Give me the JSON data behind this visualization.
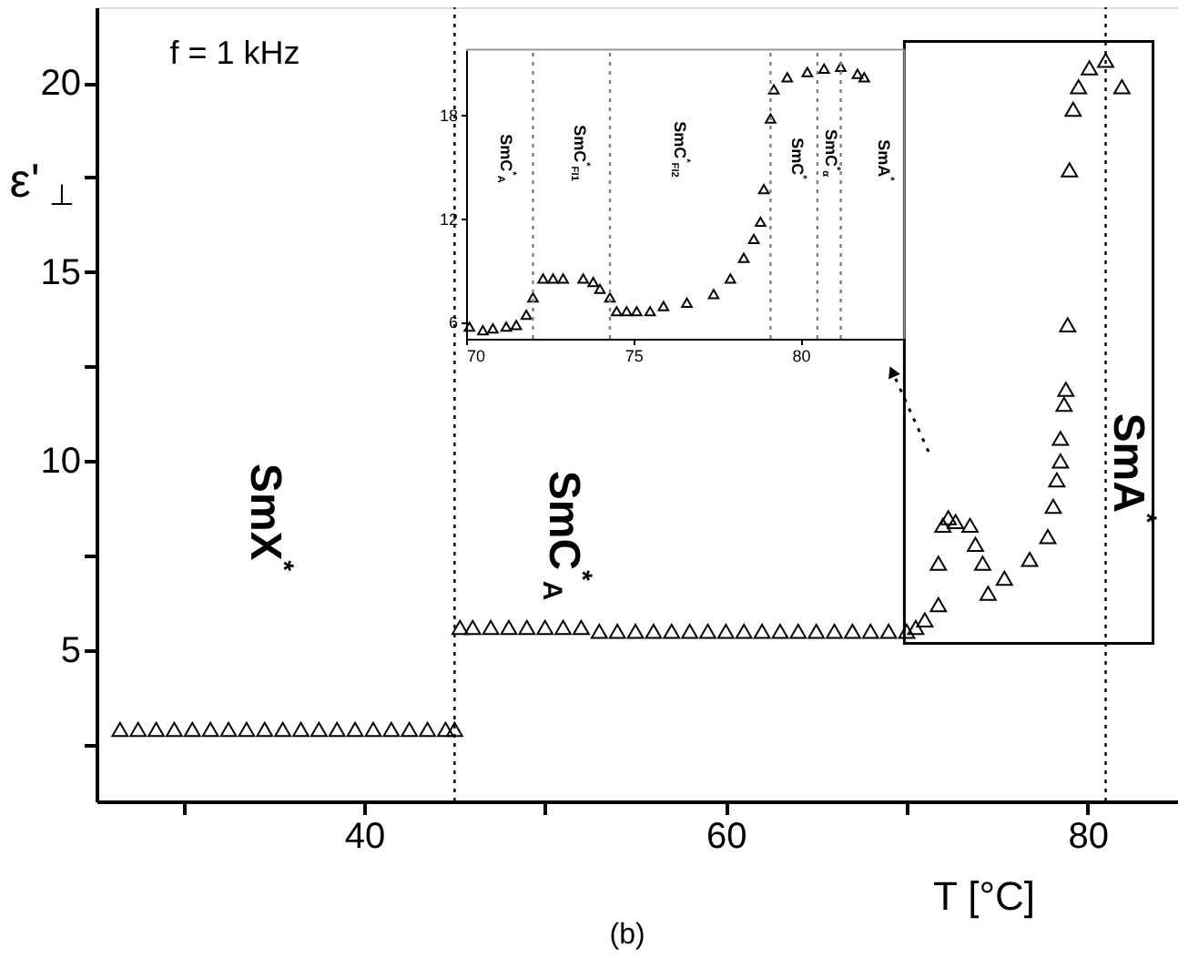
{
  "chart_data": [
    {
      "type": "scatter",
      "xlabel": "T [°C]",
      "ylabel": "ε'$_{⊥}$",
      "marker": "triangle",
      "grid": false,
      "xlim": [
        25.2,
        85
      ],
      "ylim": [
        1,
        22
      ],
      "xticks": [
        {
          "value": 30,
          "label": null
        },
        40,
        {
          "value": 50,
          "label": null
        },
        60,
        {
          "value": 70,
          "label": null
        },
        80
      ],
      "yticks": [
        {
          "value": 2.5,
          "label": null
        },
        5,
        {
          "value": 7.5,
          "label": null
        },
        10,
        {
          "value": 12.5,
          "label": null
        },
        15,
        {
          "value": 17.5,
          "label": null
        },
        20
      ],
      "series": [
        {
          "color": "#000000",
          "x": [
            26.5,
            27.5,
            28.5,
            29.5,
            30.5,
            31.5,
            32.5,
            33.5,
            34.5,
            35.5,
            36.5,
            37.5,
            38.5,
            39.5,
            40.5,
            41.5,
            42.5,
            43.5,
            44.5,
            45.0,
            45.3,
            46,
            47,
            48,
            49,
            50,
            51,
            52,
            53,
            54,
            55,
            56,
            57,
            58,
            59,
            60,
            61,
            62,
            63,
            64,
            65,
            66,
            67,
            68,
            69,
            70,
            70.5,
            71,
            71.75,
            71.75,
            72.0,
            72.3,
            72.7,
            73.5,
            73.8,
            74.2,
            74.5,
            75.4,
            76.8,
            77.8,
            78.1,
            78.3,
            78.5,
            78.5,
            78.7,
            78.8,
            78.9,
            79.0,
            79.2,
            79.5,
            80.1,
            81.0,
            81.9
          ],
          "values": [
            2.9,
            2.9,
            2.9,
            2.9,
            2.9,
            2.9,
            2.9,
            2.9,
            2.9,
            2.9,
            2.9,
            2.9,
            2.9,
            2.9,
            2.9,
            2.9,
            2.9,
            2.9,
            2.9,
            2.9,
            5.6,
            5.6,
            5.6,
            5.6,
            5.6,
            5.6,
            5.6,
            5.6,
            5.5,
            5.5,
            5.5,
            5.5,
            5.5,
            5.5,
            5.5,
            5.5,
            5.5,
            5.5,
            5.5,
            5.5,
            5.5,
            5.5,
            5.5,
            5.5,
            5.5,
            5.5,
            5.6,
            5.8,
            6.2,
            7.3,
            8.3,
            8.5,
            8.4,
            8.3,
            7.8,
            7.3,
            6.5,
            6.9,
            7.4,
            8.0,
            8.8,
            9.5,
            10.0,
            10.6,
            11.5,
            11.9,
            13.6,
            17.7,
            19.3,
            19.9,
            20.4,
            20.6,
            19.9
          ]
        }
      ],
      "ref_lines": [
        {
          "axis": "x",
          "value": 45,
          "color": "#000000",
          "line_style": "dotted"
        },
        {
          "axis": "x",
          "value": 81,
          "color": "#000000",
          "line_style": "dotted"
        }
      ],
      "annotations": [
        "f = 1 kHz",
        "(b)",
        "SmX$^{*}$",
        "SmC$^{*}$$_{A}$",
        "SmA$^{*}$"
      ]
    },
    {
      "type": "scatter",
      "marker": "triangle",
      "grid": false,
      "xlim": [
        70,
        83.1
      ],
      "ylim": [
        5,
        21.8
      ],
      "xticks": [
        70,
        75,
        80
      ],
      "yticks": [
        6,
        12,
        18
      ],
      "series": [
        {
          "color": "#000000",
          "x": [
            70.1,
            70.5,
            70.8,
            71.2,
            71.5,
            71.8,
            72.0,
            72.3,
            72.6,
            72.9,
            73.5,
            73.8,
            74.0,
            74.3,
            74.5,
            74.8,
            75.1,
            75.5,
            75.9,
            76.6,
            77.4,
            77.9,
            78.3,
            78.6,
            78.8,
            78.9,
            79.1,
            79.2,
            79.6,
            80.2,
            80.7,
            81.2,
            81.7,
            81.9
          ],
          "values": [
            5.7,
            5.5,
            5.6,
            5.7,
            5.8,
            6.4,
            7.4,
            8.5,
            8.5,
            8.5,
            8.5,
            8.3,
            7.9,
            7.4,
            6.6,
            6.6,
            6.6,
            6.6,
            6.9,
            7.1,
            7.6,
            8.5,
            9.7,
            10.8,
            11.8,
            13.7,
            17.8,
            19.5,
            20.2,
            20.5,
            20.7,
            20.8,
            20.4,
            20.2
          ]
        }
      ],
      "ref_lines": [
        {
          "axis": "x",
          "value": 72.0,
          "color": "#808080",
          "line_style": "dotted"
        },
        {
          "axis": "x",
          "value": 74.3,
          "color": "#808080",
          "line_style": "dotted"
        },
        {
          "axis": "x",
          "value": 79.1,
          "color": "#808080",
          "line_style": "dotted"
        },
        {
          "axis": "x",
          "value": 80.5,
          "color": "#808080",
          "line_style": "dotted"
        },
        {
          "axis": "x",
          "value": 81.2,
          "color": "#808080",
          "line_style": "dotted"
        }
      ],
      "annotations": [
        "SmC$^{*}$$_{A}$",
        "SmC$^{*}$$_{FI1}$",
        "SmC$^{*}$$_{FI2}$",
        "SmC$^{*}$",
        "SmC$^{*}$$_{α}$",
        "SmA$^{*}$"
      ]
    }
  ]
}
